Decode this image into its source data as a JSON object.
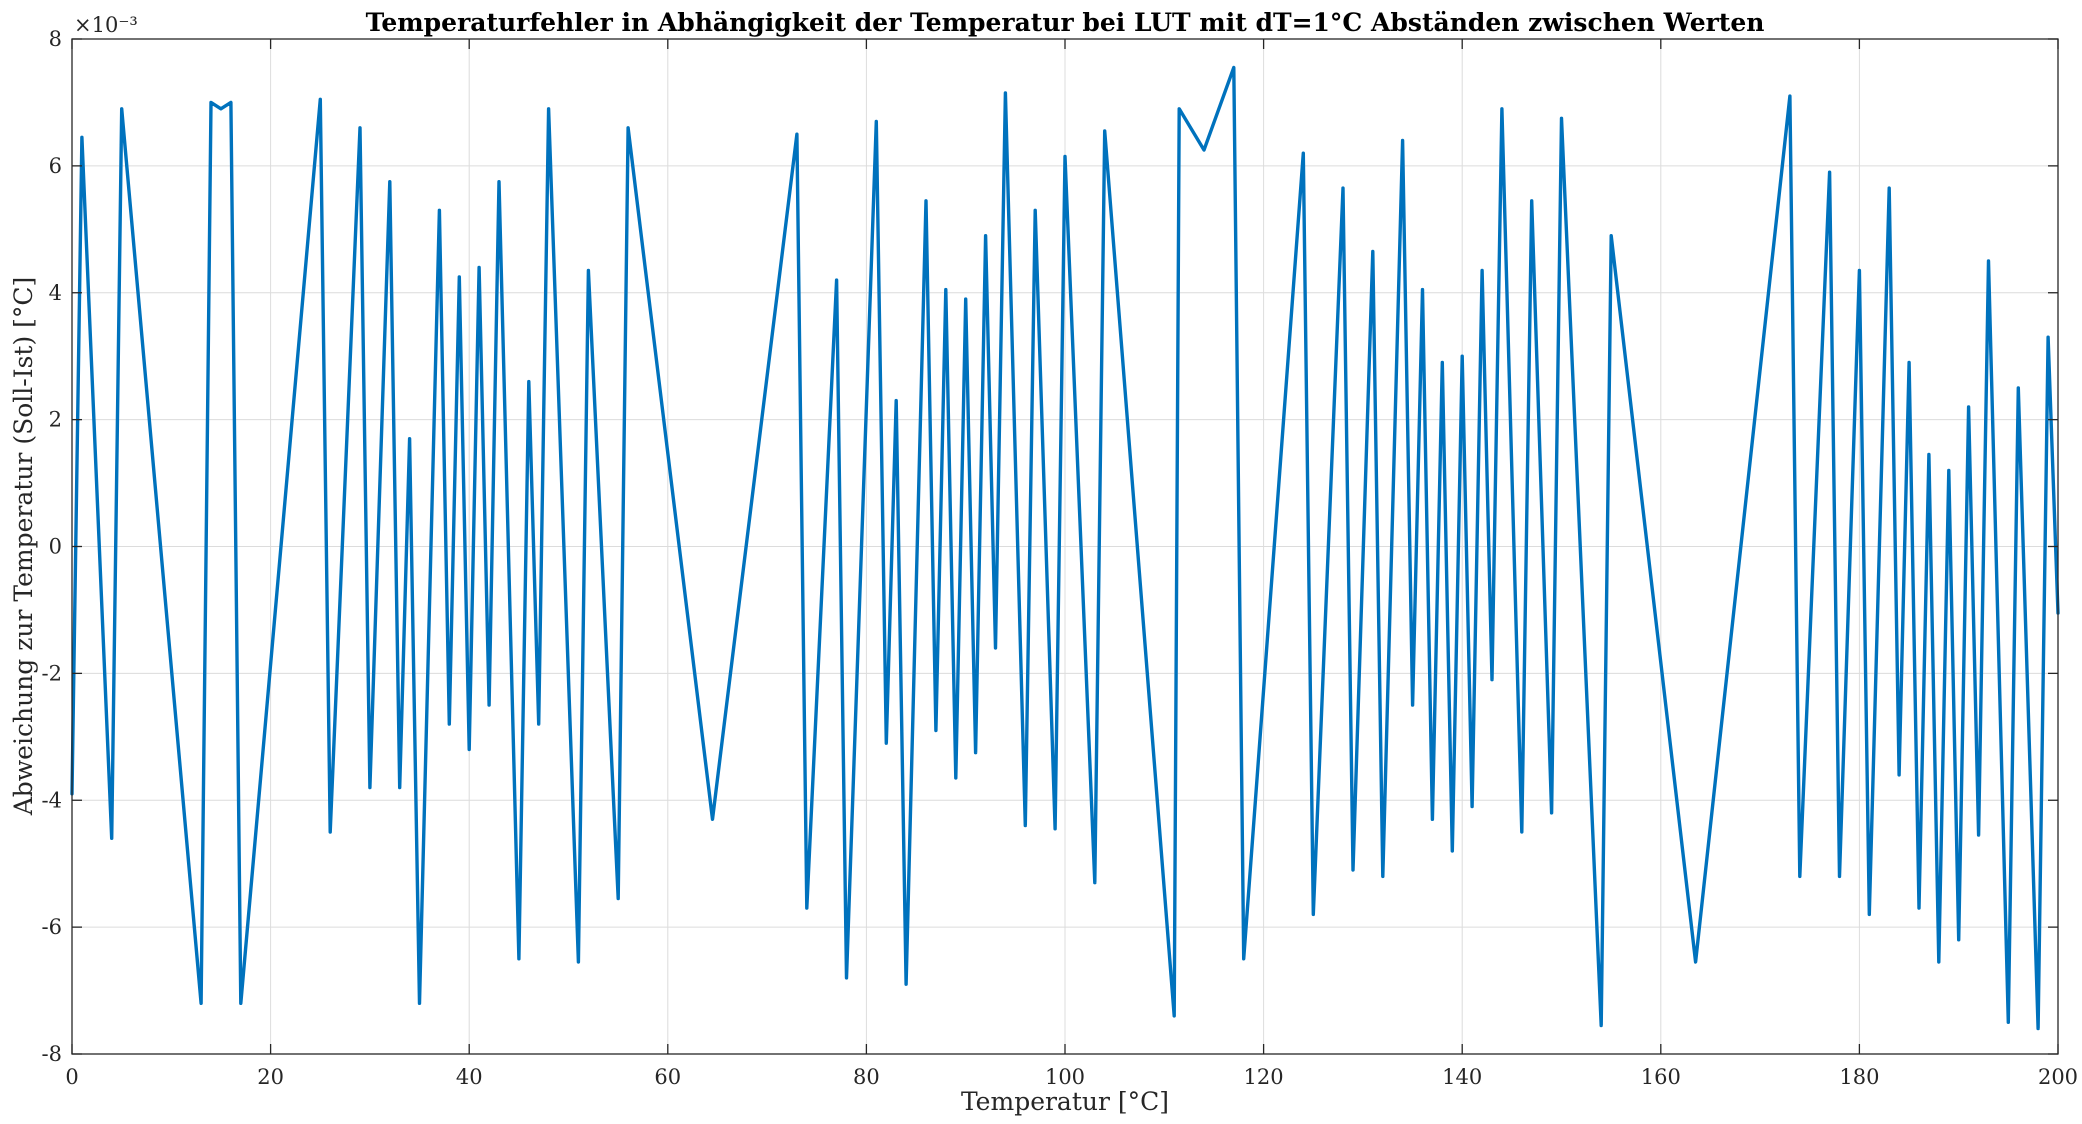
{
  "chart_data": {
    "type": "line",
    "title": "Temperaturfehler in Abhängigkeit der Temperatur bei LUT mit dT=1°C Abständen zwischen Werten",
    "xlabel": "Temperatur [°C]",
    "ylabel": "Abweichung zur Temperatur (Soll-Ist) [°C]",
    "y_multiplier": "×10⁻³",
    "xlim": [
      0,
      200
    ],
    "ylim": [
      -8,
      8
    ],
    "x_ticks": [
      0,
      20,
      40,
      60,
      80,
      100,
      120,
      140,
      160,
      180,
      200
    ],
    "y_ticks": [
      -8,
      -6,
      -4,
      -2,
      0,
      2,
      4,
      6,
      8
    ],
    "x_tick_labels": [
      "0",
      "20",
      "40",
      "60",
      "80",
      "100",
      "120",
      "140",
      "160",
      "180",
      "200"
    ],
    "y_tick_labels": [
      "-8",
      "-6",
      "-4",
      "-2",
      "0",
      "2",
      "4",
      "6",
      "8"
    ],
    "y_unit_scale": 0.001,
    "grid": true,
    "line_color": "#0072BD",
    "series": [
      {
        "points": [
          [
            0,
            -3.9
          ],
          [
            1,
            6.45
          ],
          [
            4,
            -4.6
          ],
          [
            5,
            6.9
          ],
          [
            13,
            -7.2
          ],
          [
            14,
            7.0
          ],
          [
            15,
            6.9
          ],
          [
            16,
            7.0
          ],
          [
            17,
            -7.2
          ],
          [
            25,
            7.05
          ],
          [
            26,
            -4.5
          ],
          [
            29,
            6.6
          ],
          [
            30,
            -3.8
          ],
          [
            32,
            5.75
          ],
          [
            33,
            -3.8
          ],
          [
            34,
            1.7
          ],
          [
            35,
            -7.2
          ],
          [
            37,
            5.3
          ],
          [
            38,
            -2.8
          ],
          [
            39,
            4.25
          ],
          [
            40,
            -3.2
          ],
          [
            41,
            4.4
          ],
          [
            42,
            -2.5
          ],
          [
            43,
            5.75
          ],
          [
            45,
            -6.5
          ],
          [
            46,
            2.6
          ],
          [
            47,
            -2.8
          ],
          [
            48,
            6.9
          ],
          [
            51,
            -6.55
          ],
          [
            52,
            4.35
          ],
          [
            55,
            -5.55
          ],
          [
            56,
            6.6
          ],
          [
            64.5,
            -4.3
          ],
          [
            73,
            6.5
          ],
          [
            74,
            -5.7
          ],
          [
            77,
            4.2
          ],
          [
            78,
            -6.8
          ],
          [
            81,
            6.7
          ],
          [
            82,
            -3.1
          ],
          [
            83,
            2.3
          ],
          [
            84,
            -6.9
          ],
          [
            86,
            5.45
          ],
          [
            87,
            -2.9
          ],
          [
            88,
            4.05
          ],
          [
            89,
            -3.65
          ],
          [
            90,
            3.9
          ],
          [
            91,
            -3.25
          ],
          [
            92,
            4.9
          ],
          [
            93,
            -1.6
          ],
          [
            94,
            7.15
          ],
          [
            96,
            -4.4
          ],
          [
            97,
            5.3
          ],
          [
            99,
            -4.45
          ],
          [
            100,
            6.15
          ],
          [
            103,
            -5.3
          ],
          [
            104,
            6.55
          ],
          [
            111,
            -7.4
          ],
          [
            111.5,
            6.9
          ],
          [
            114,
            6.25
          ],
          [
            117,
            7.55
          ],
          [
            118,
            -6.5
          ],
          [
            124,
            6.2
          ],
          [
            125,
            -5.8
          ],
          [
            128,
            5.65
          ],
          [
            129,
            -5.1
          ],
          [
            131,
            4.65
          ],
          [
            132,
            -5.2
          ],
          [
            134,
            6.4
          ],
          [
            135,
            -2.5
          ],
          [
            136,
            4.05
          ],
          [
            137,
            -4.3
          ],
          [
            138,
            2.9
          ],
          [
            139,
            -4.8
          ],
          [
            140,
            3.0
          ],
          [
            141,
            -4.1
          ],
          [
            142,
            4.35
          ],
          [
            143,
            -2.1
          ],
          [
            144,
            6.9
          ],
          [
            146,
            -4.5
          ],
          [
            147,
            5.45
          ],
          [
            149,
            -4.2
          ],
          [
            150,
            6.75
          ],
          [
            154,
            -7.55
          ],
          [
            155,
            4.9
          ],
          [
            163.5,
            -6.55
          ],
          [
            173,
            7.1
          ],
          [
            174,
            -5.2
          ],
          [
            177,
            5.9
          ],
          [
            178,
            -5.2
          ],
          [
            180,
            4.35
          ],
          [
            181,
            -5.8
          ],
          [
            183,
            5.65
          ],
          [
            184,
            -3.6
          ],
          [
            185,
            2.9
          ],
          [
            186,
            -5.7
          ],
          [
            187,
            1.45
          ],
          [
            188,
            -6.55
          ],
          [
            189,
            1.2
          ],
          [
            190,
            -6.2
          ],
          [
            191,
            2.2
          ],
          [
            192,
            -4.55
          ],
          [
            193,
            4.5
          ],
          [
            195,
            -7.5
          ],
          [
            196,
            2.5
          ],
          [
            198,
            -7.6
          ],
          [
            199,
            3.3
          ],
          [
            200,
            -1.05
          ]
        ]
      }
    ]
  }
}
